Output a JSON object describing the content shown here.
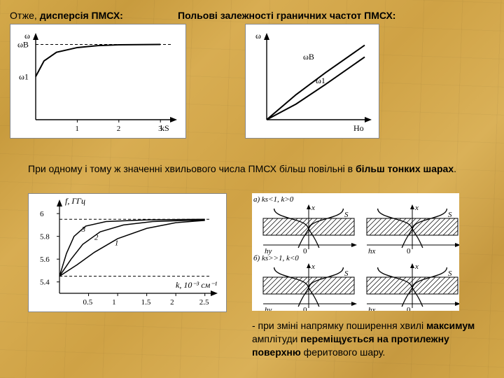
{
  "heading_left": "Отже, дисперсія ПМСХ:",
  "heading_right": "Польові залежності граничних частот ПМСХ:",
  "text_mid": "При одному і тому ж значенні хвильового числа ПМСХ більш повільні в більш тонких шарах.",
  "text_bottom": "- при зміні напрямку поширення хвилі максимум амплітуди переміщується на протилежну поверхню феритового шару.",
  "fig1": {
    "type": "line",
    "x_label": "kS",
    "y_label": "ω",
    "ylim": [
      0,
      1
    ],
    "xlim": [
      0,
      3.3
    ],
    "x_ticks": [
      1,
      2,
      3
    ],
    "asymptote_label": "ωB",
    "start_label": "ω1",
    "curve": [
      [
        0,
        0.55
      ],
      [
        0.2,
        0.75
      ],
      [
        0.5,
        0.86
      ],
      [
        1,
        0.92
      ],
      [
        1.5,
        0.945
      ],
      [
        2,
        0.955
      ],
      [
        2.5,
        0.958
      ],
      [
        3,
        0.96
      ]
    ],
    "asymptote_y": 0.96,
    "stroke": "#000000",
    "stroke_width": 2,
    "dash": "4,3",
    "bg": "#ffffff"
  },
  "fig2": {
    "type": "line",
    "x_label": "Ho",
    "y_label": "ω",
    "upper_label": "ωB",
    "lower_label": "ω1",
    "lines": {
      "upper": [
        [
          0,
          0
        ],
        [
          1,
          0.95
        ]
      ],
      "lower": [
        [
          0,
          0
        ],
        [
          1,
          0.8
        ]
      ]
    },
    "stroke": "#000000",
    "stroke_width": 2,
    "bg": "#ffffff"
  },
  "fig3": {
    "type": "line-family",
    "y_label": "f, ГГц",
    "x_label": "k, 10⁻³ см⁻¹",
    "x_ticks": [
      0.5,
      1,
      1.5,
      2,
      2.5
    ],
    "y_ticks": [
      5.4,
      5.6,
      5.8,
      6
    ],
    "ylim": [
      5.3,
      6.05
    ],
    "xlim": [
      0,
      2.6
    ],
    "asymptote_y": 5.95,
    "lower_dash_y": 5.45,
    "curves": {
      "1": [
        [
          0.0,
          5.45
        ],
        [
          0.3,
          5.55
        ],
        [
          0.6,
          5.66
        ],
        [
          1.0,
          5.78
        ],
        [
          1.5,
          5.87
        ],
        [
          2.0,
          5.92
        ],
        [
          2.5,
          5.94
        ]
      ],
      "2": [
        [
          0.0,
          5.45
        ],
        [
          0.2,
          5.6
        ],
        [
          0.4,
          5.73
        ],
        [
          0.7,
          5.84
        ],
        [
          1.1,
          5.9
        ],
        [
          1.6,
          5.93
        ],
        [
          2.5,
          5.945
        ]
      ],
      "3": [
        [
          0.0,
          5.45
        ],
        [
          0.12,
          5.65
        ],
        [
          0.25,
          5.8
        ],
        [
          0.45,
          5.89
        ],
        [
          0.8,
          5.93
        ],
        [
          1.5,
          5.945
        ],
        [
          2.5,
          5.95
        ]
      ]
    },
    "curve_labels": {
      "1": "1",
      "2": "2",
      "3": "3"
    },
    "stroke": "#000000",
    "stroke_width": 1.5,
    "dash": "4,3",
    "bg": "#ffffff"
  },
  "fig4": {
    "type": "field-profile",
    "panel_a_label": "a) ks<1, k>0",
    "panel_b_label": "б) ks>>1, k<0",
    "axis_labels": {
      "x": "x",
      "S": "S",
      "hx": "hx",
      "hy": "hy",
      "zero": "0"
    },
    "hatch_color": "#000000",
    "stroke": "#000000",
    "bg": "#ffffff"
  },
  "colors": {
    "text": "#000000",
    "bold": "#000000"
  }
}
